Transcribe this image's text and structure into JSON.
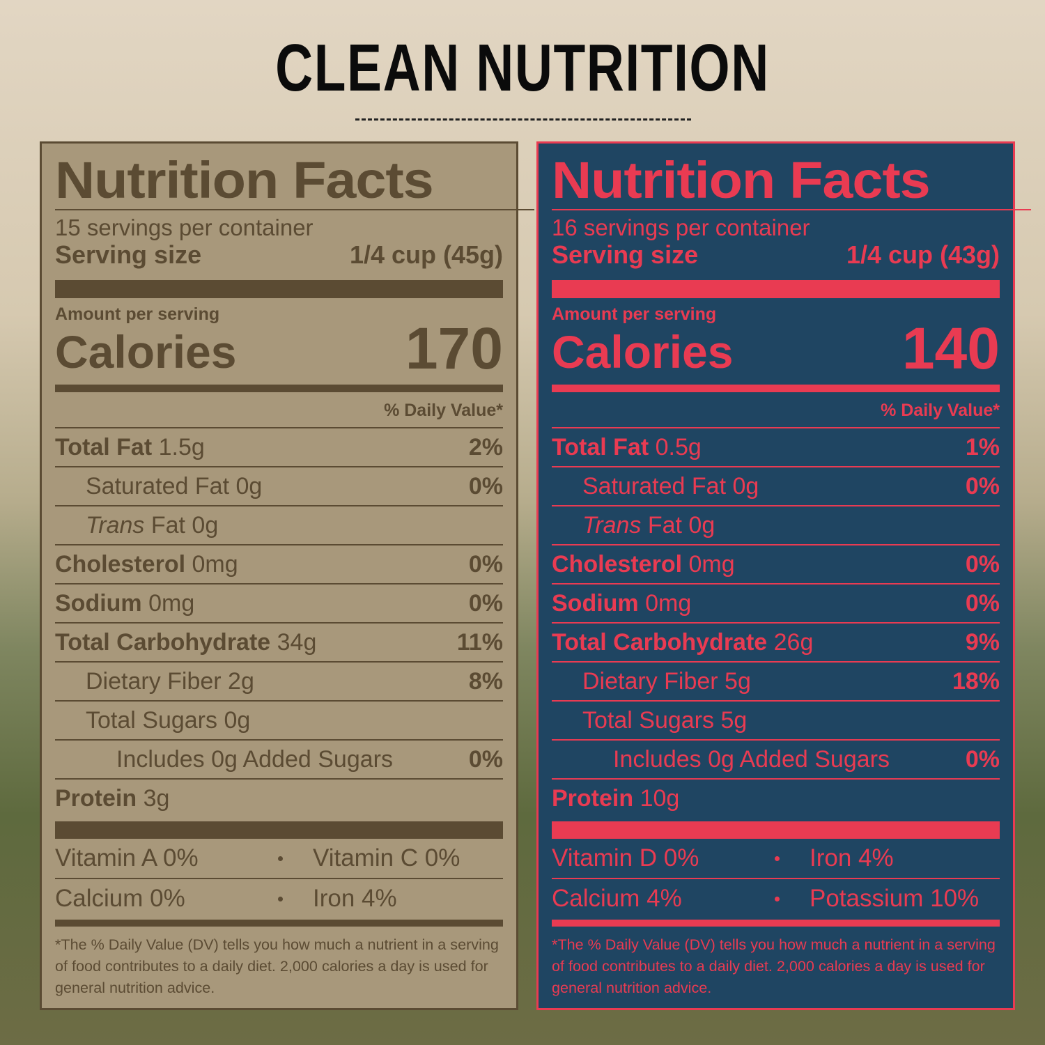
{
  "header": {
    "title": "CLEAN NUTRITION"
  },
  "labels": [
    {
      "title": "Nutrition Facts",
      "servings": "15 servings per container",
      "serving_size_label": "Serving size",
      "serving_size": "1/4 cup (45g)",
      "amount_per_serving": "Amount per serving",
      "calories_label": "Calories",
      "calories": "170",
      "daily_value_header": "% Daily Value*",
      "nutrients": [
        {
          "name": "Total Fat",
          "amount": "1.5g",
          "dv": "2%",
          "sub": [
            {
              "name": "Saturated Fat 0g",
              "dv": "0%"
            },
            {
              "name_italic": "Trans",
              "name": "Fat 0g"
            }
          ]
        },
        {
          "name": "Cholesterol",
          "amount": "0mg",
          "dv": "0%"
        },
        {
          "name": "Sodium",
          "amount": "0mg",
          "dv": "0%"
        },
        {
          "name": "Total Carbohydrate",
          "amount": "34g",
          "dv": "11%",
          "sub": [
            {
              "name": "Dietary Fiber 2g",
              "dv": "8%"
            },
            {
              "name": "Total Sugars 0g",
              "sub": [
                {
                  "name": "Includes 0g Added Sugars",
                  "dv": "0%"
                }
              ]
            }
          ]
        },
        {
          "name": "Protein",
          "amount": "3g"
        }
      ],
      "vitamins": [
        [
          "Vitamin A 0%",
          "Vitamin C 0%"
        ],
        [
          "Calcium 0%",
          "Iron 4%"
        ]
      ],
      "footnote": "*The % Daily Value (DV) tells you how much a nutrient in a serving of food contributes to a daily diet. 2,000 calories a day is used for general nutrition advice."
    },
    {
      "title": "Nutrition Facts",
      "servings": "16 servings per container",
      "serving_size_label": "Serving size",
      "serving_size": "1/4 cup (43g)",
      "amount_per_serving": "Amount per serving",
      "calories_label": "Calories",
      "calories": "140",
      "daily_value_header": "% Daily Value*",
      "nutrients": [
        {
          "name": "Total Fat",
          "amount": "0.5g",
          "dv": "1%",
          "sub": [
            {
              "name": "Saturated Fat 0g",
              "dv": "0%"
            },
            {
              "name_italic": "Trans",
              "name": "Fat 0g"
            }
          ]
        },
        {
          "name": "Cholesterol",
          "amount": "0mg",
          "dv": "0%"
        },
        {
          "name": "Sodium",
          "amount": "0mg",
          "dv": "0%"
        },
        {
          "name": "Total Carbohydrate",
          "amount": "26g",
          "dv": "9%",
          "sub": [
            {
              "name": "Dietary Fiber 5g",
              "dv": "18%"
            },
            {
              "name": "Total Sugars 5g",
              "sub": [
                {
                  "name": "Includes 0g Added Sugars",
                  "dv": "0%"
                }
              ]
            }
          ]
        },
        {
          "name": "Protein",
          "amount": "10g"
        }
      ],
      "vitamins": [
        [
          "Vitamin D 0%",
          "Iron 4%"
        ],
        [
          "Calcium 4%",
          "Potassium 10%"
        ]
      ],
      "footnote": "*The % Daily Value (DV) tells you how much a nutrient in a serving of food contributes to a daily diet. 2,000 calories a day is used for general nutrition advice."
    }
  ]
}
